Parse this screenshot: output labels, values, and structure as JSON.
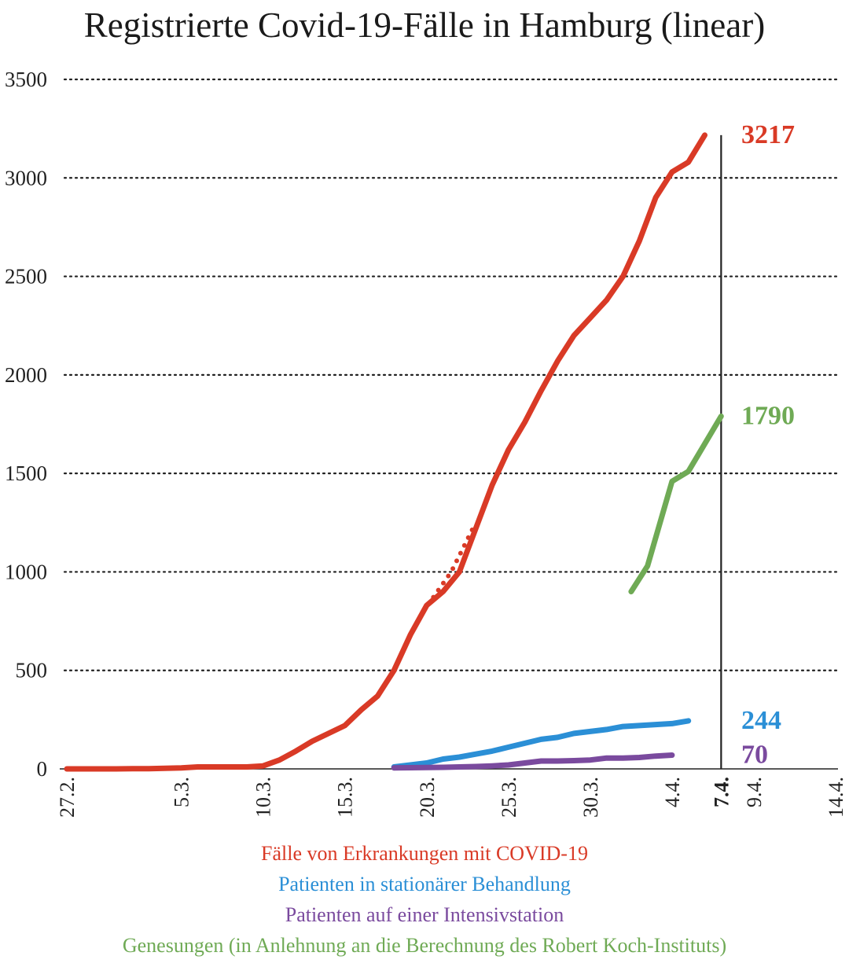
{
  "chart_data": {
    "type": "line",
    "title": "Registrierte Covid-19-Fälle in Hamburg (linear)",
    "xlabel": "",
    "ylabel": "",
    "ylim": [
      0,
      3500
    ],
    "yticks": [
      0,
      500,
      1000,
      1500,
      2000,
      2500,
      3000,
      3500
    ],
    "x_range_days": [
      0,
      47
    ],
    "xticks": [
      {
        "label": "27.2.",
        "day": 0,
        "bold": false
      },
      {
        "label": "5.3.",
        "day": 7,
        "bold": false
      },
      {
        "label": "10.3.",
        "day": 12,
        "bold": false
      },
      {
        "label": "15.3.",
        "day": 17,
        "bold": false
      },
      {
        "label": "20.3.",
        "day": 22,
        "bold": false
      },
      {
        "label": "25.3.",
        "day": 27,
        "bold": false
      },
      {
        "label": "30.3.",
        "day": 32,
        "bold": false
      },
      {
        "label": "4.4.",
        "day": 37,
        "bold": false
      },
      {
        "label": "7.4.",
        "day": 40,
        "bold": true
      },
      {
        "label": "9.4.",
        "day": 42,
        "bold": false
      },
      {
        "label": "14.4.",
        "day": 47,
        "bold": false
      }
    ],
    "grid": "horizontal-dotted",
    "marker_day": 40,
    "series": [
      {
        "name": "Fälle von Erkrankungen mit COVID-19",
        "color": "#d93a26",
        "end_label": "3217",
        "points": [
          [
            0,
            0
          ],
          [
            1,
            0
          ],
          [
            2,
            0
          ],
          [
            3,
            0
          ],
          [
            4,
            1
          ],
          [
            5,
            1
          ],
          [
            6,
            3
          ],
          [
            7,
            5
          ],
          [
            8,
            10
          ],
          [
            9,
            10
          ],
          [
            10,
            10
          ],
          [
            11,
            10
          ],
          [
            12,
            15
          ],
          [
            13,
            45
          ],
          [
            14,
            90
          ],
          [
            15,
            140
          ],
          [
            16,
            180
          ],
          [
            17,
            220
          ],
          [
            18,
            300
          ],
          [
            19,
            370
          ],
          [
            20,
            500
          ],
          [
            21,
            680
          ],
          [
            22,
            830
          ],
          [
            23,
            900
          ],
          [
            24,
            1000
          ],
          [
            25,
            1220
          ],
          [
            26,
            1440
          ],
          [
            27,
            1620
          ],
          [
            28,
            1760
          ],
          [
            29,
            1920
          ],
          [
            30,
            2070
          ],
          [
            31,
            2200
          ],
          [
            32,
            2290
          ],
          [
            33,
            2380
          ],
          [
            34,
            2500
          ],
          [
            35,
            2680
          ],
          [
            36,
            2900
          ],
          [
            37,
            3030
          ],
          [
            38,
            3080
          ],
          [
            39,
            3217
          ]
        ]
      },
      {
        "name": "Patienten in stationärer Behandlung",
        "color": "#2b8fd6",
        "end_label": "244",
        "points": [
          [
            20,
            10
          ],
          [
            21,
            20
          ],
          [
            22,
            30
          ],
          [
            23,
            50
          ],
          [
            24,
            60
          ],
          [
            25,
            75
          ],
          [
            26,
            90
          ],
          [
            27,
            110
          ],
          [
            28,
            130
          ],
          [
            29,
            150
          ],
          [
            30,
            160
          ],
          [
            31,
            180
          ],
          [
            32,
            190
          ],
          [
            33,
            200
          ],
          [
            34,
            215
          ],
          [
            35,
            220
          ],
          [
            36,
            225
          ],
          [
            37,
            230
          ],
          [
            38,
            244
          ]
        ]
      },
      {
        "name": "Patienten auf einer Intensivstation",
        "color": "#7a4a9e",
        "end_label": "70",
        "points": [
          [
            20,
            5
          ],
          [
            21,
            6
          ],
          [
            22,
            7
          ],
          [
            23,
            8
          ],
          [
            24,
            10
          ],
          [
            25,
            12
          ],
          [
            26,
            15
          ],
          [
            27,
            20
          ],
          [
            28,
            30
          ],
          [
            29,
            40
          ],
          [
            30,
            40
          ],
          [
            31,
            42
          ],
          [
            32,
            45
          ],
          [
            33,
            55
          ],
          [
            34,
            55
          ],
          [
            35,
            58
          ],
          [
            36,
            65
          ],
          [
            37,
            70
          ]
        ]
      },
      {
        "name": "Genesungen (in Anlehnung an die Berechnung des Robert Koch-Instituts)",
        "color": "#6faa55",
        "end_label": "1790",
        "points": [
          [
            34.5,
            900
          ],
          [
            35.5,
            1030
          ],
          [
            37,
            1460
          ],
          [
            38,
            1510
          ],
          [
            39,
            1650
          ],
          [
            40,
            1790
          ]
        ]
      }
    ],
    "annotation_dotted_segment": {
      "color": "#d93a26",
      "points": [
        [
          21.8,
          800
        ],
        [
          23.5,
          1000
        ],
        [
          25,
          1250
        ]
      ]
    }
  },
  "legend": [
    {
      "text": "Fälle von Erkrankungen mit COVID-19",
      "color": "#d93a26"
    },
    {
      "text": "Patienten in stationärer Behandlung",
      "color": "#2b8fd6"
    },
    {
      "text": "Patienten auf einer Intensivstation",
      "color": "#7a4a9e"
    },
    {
      "text": "Genesungen (in Anlehnung an die Berechnung des Robert Koch-Instituts)",
      "color": "#6faa55"
    }
  ]
}
